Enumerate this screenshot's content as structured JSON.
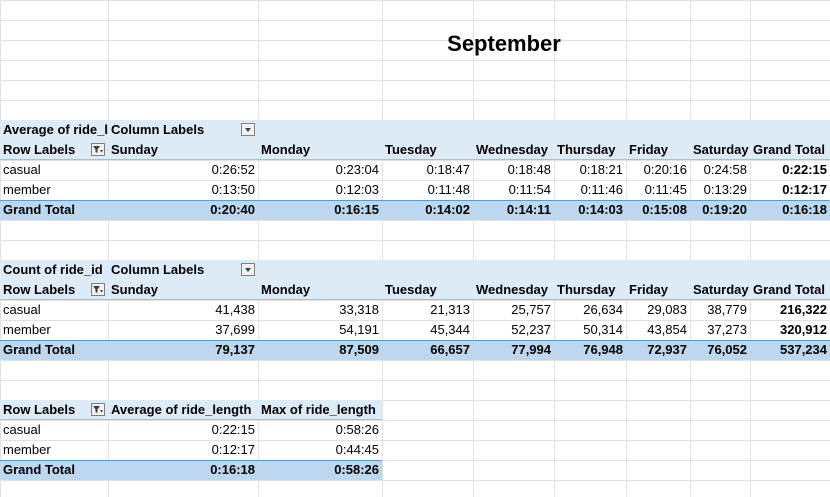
{
  "sheet_title": "September",
  "colors": {
    "band": "#ddebf7",
    "total": "#bdd7ee",
    "gridline": "#e1e1e1"
  },
  "pivot1": {
    "corner": "Average of ride_l",
    "column_labels": "Column Labels",
    "row_labels": "Row Labels",
    "columns": [
      "Sunday",
      "Monday",
      "Tuesday",
      "Wednesday",
      "Thursday",
      "Friday",
      "Saturday",
      "Grand Total"
    ],
    "rows": [
      {
        "label": "casual",
        "values": [
          "0:26:52",
          "0:23:04",
          "0:18:47",
          "0:18:48",
          "0:18:21",
          "0:20:16",
          "0:24:58",
          "0:22:15"
        ]
      },
      {
        "label": "member",
        "values": [
          "0:13:50",
          "0:12:03",
          "0:11:48",
          "0:11:54",
          "0:11:46",
          "0:11:45",
          "0:13:29",
          "0:12:17"
        ]
      }
    ],
    "total": {
      "label": "Grand Total",
      "values": [
        "0:20:40",
        "0:16:15",
        "0:14:02",
        "0:14:11",
        "0:14:03",
        "0:15:08",
        "0:19:20",
        "0:16:18"
      ]
    }
  },
  "pivot2": {
    "corner": "Count of ride_id",
    "column_labels": "Column Labels",
    "row_labels": "Row Labels",
    "columns": [
      "Sunday",
      "Monday",
      "Tuesday",
      "Wednesday",
      "Thursday",
      "Friday",
      "Saturday",
      "Grand Total"
    ],
    "rows": [
      {
        "label": "casual",
        "values": [
          "41,438",
          "33,318",
          "21,313",
          "25,757",
          "26,634",
          "29,083",
          "38,779",
          "216,322"
        ]
      },
      {
        "label": "member",
        "values": [
          "37,699",
          "54,191",
          "45,344",
          "52,237",
          "50,314",
          "43,854",
          "37,273",
          "320,912"
        ]
      }
    ],
    "total": {
      "label": "Grand Total",
      "values": [
        "79,137",
        "87,509",
        "66,657",
        "77,994",
        "76,948",
        "72,937",
        "76,052",
        "537,234"
      ]
    }
  },
  "pivot3": {
    "row_labels": "Row Labels",
    "columns": [
      "Average of ride_length",
      "Max of ride_length"
    ],
    "rows": [
      {
        "label": "casual",
        "values": [
          "0:22:15",
          "0:58:26"
        ]
      },
      {
        "label": "member",
        "values": [
          "0:12:17",
          "0:44:45"
        ]
      }
    ],
    "total": {
      "label": "Grand Total",
      "values": [
        "0:16:18",
        "0:58:26"
      ]
    }
  }
}
